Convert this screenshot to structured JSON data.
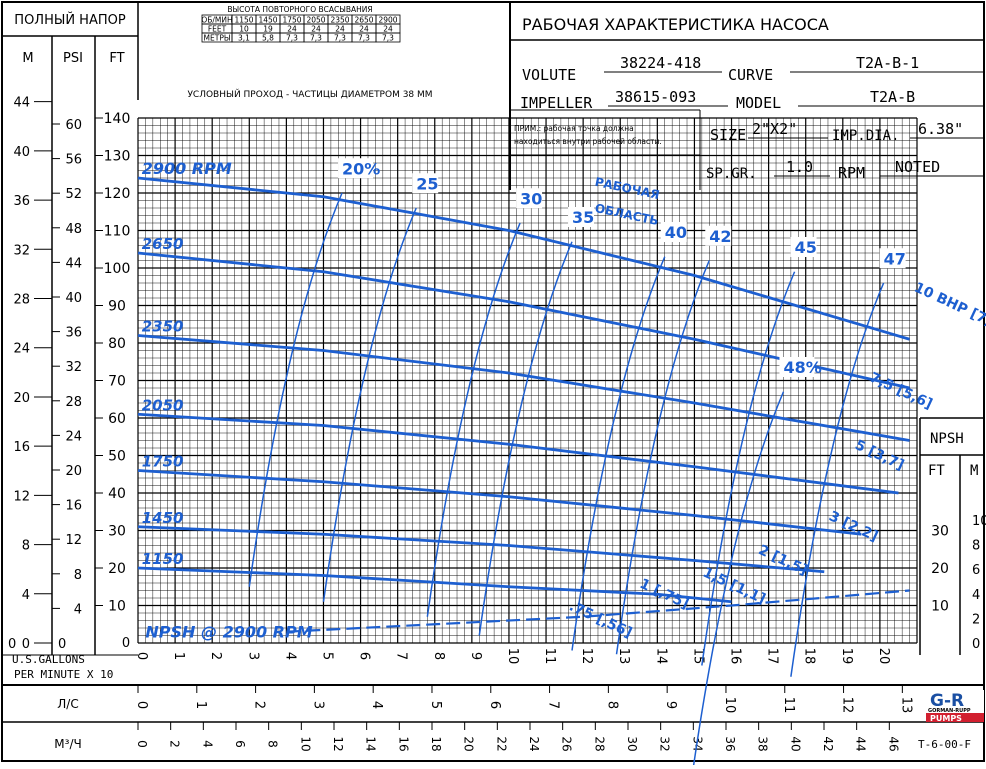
{
  "header": {
    "head_label": "ПОЛНЫЙ НАПОР",
    "title": "РАБОЧАЯ ХАРАКТЕРИСТИКА НАСОСА",
    "suction_table_title": "ВЫСОТА ПОВТОРНОГО ВСАСЫВАНИЯ",
    "suction_table": {
      "rows": [
        [
          "ОБ/МИН",
          "1150",
          "1450",
          "1750",
          "2050",
          "2350",
          "2650",
          "2900"
        ],
        [
          "FEET",
          "10",
          "19",
          "24",
          "24",
          "24",
          "24",
          "24"
        ],
        [
          "МЕТРЫ",
          "3,1",
          "5,8",
          "7,3",
          "7,3",
          "7,3",
          "7,3",
          "7,3"
        ]
      ]
    },
    "solids_note": "УСЛОВНЫЙ ПРОХОД - ЧАСТИЦЫ ДИАМЕТРОМ 38  ММ",
    "operating_note_line1": "ПРИМ.: рабочая точка должна",
    "operating_note_line2": "находиться внутри рабочей области."
  },
  "specs": {
    "volute_label": "VOLUTE",
    "volute": "38224-418",
    "curve_label": "CURVE",
    "curve": "T2A-B-1",
    "impeller_label": "IMPELLER",
    "impeller": "38615-093",
    "model_label": "MODEL",
    "model": "T2A-B",
    "size_label": "SIZE",
    "size": "2\"X2\"",
    "impdia_label": "IMP.DIA.",
    "impdia": "6.38\"",
    "spgr_label": "SP.GR.",
    "spgr": "1.0",
    "rpm_label": "RPM",
    "rpm": "NOTED"
  },
  "axes_text": {
    "m": "M",
    "psi": "PSI",
    "ft": "FT",
    "xunit_line1": "U.S.GALLONS",
    "xunit_line2": "PER MINUTE  X 10",
    "ls": "Л/С",
    "m3h": "М³/Ч",
    "npsh": "NPSH",
    "npsh_ft": "FT",
    "npsh_m": "M"
  },
  "footer": {
    "logo_top": "G-R",
    "logo_mid": "GORMAN-RUPP",
    "logo_bottom": "PUMPS",
    "code": "T-6-00-F"
  },
  "chart_data": {
    "type": "line",
    "title": "РАБОЧАЯ ХАРАКТЕРИСТИКА НАСОСА",
    "xlabel": "U.S.GALLONS PER MINUTE X 10",
    "ylabel": "ПОЛНЫЙ НАПОР",
    "x_gpm10_range": [
      0,
      21
    ],
    "y_ft_range": [
      0,
      140
    ],
    "x_ticks_gpm10": [
      "0",
      "1",
      "2",
      "3",
      "4",
      "5",
      "6",
      "7",
      "8",
      "9",
      "10",
      "11",
      "12",
      "13",
      "14",
      "15",
      "16",
      "17",
      "18",
      "19",
      "20"
    ],
    "y_ticks_ft": [
      "10",
      "20",
      "30",
      "40",
      "50",
      "60",
      "70",
      "80",
      "90",
      "100",
      "110",
      "120",
      "130",
      "140"
    ],
    "y_ticks_m": [
      "0",
      "4",
      "8",
      "12",
      "16",
      "20",
      "24",
      "28",
      "32",
      "36",
      "40",
      "44"
    ],
    "y_ticks_psi": [
      "4",
      "8",
      "12",
      "16",
      "20",
      "24",
      "28",
      "32",
      "36",
      "40",
      "44",
      "48",
      "52",
      "56",
      "60"
    ],
    "x_ticks_ls": [
      "0",
      "1",
      "2",
      "3",
      "4",
      "5",
      "6",
      "7",
      "8",
      "9",
      "10",
      "11",
      "12",
      "13"
    ],
    "x_ticks_m3h": [
      "0",
      "2",
      "4",
      "6",
      "8",
      "10",
      "12",
      "14",
      "16",
      "18",
      "20",
      "22",
      "24",
      "26",
      "28",
      "30",
      "32",
      "34",
      "36",
      "38",
      "40",
      "42",
      "44",
      "46"
    ],
    "npsh_ticks_ft": [
      "10",
      "20",
      "30"
    ],
    "npsh_ticks_m": [
      "0",
      "2",
      "4",
      "6",
      "8",
      "10"
    ],
    "head_curves": [
      {
        "name": "2900 RPM",
        "x": [
          0,
          5,
          10,
          15,
          20.8
        ],
        "y": [
          124,
          119,
          110,
          98,
          81
        ]
      },
      {
        "name": "2650",
        "x": [
          0,
          5,
          10,
          15,
          20.8
        ],
        "y": [
          104,
          99,
          91,
          81,
          68
        ]
      },
      {
        "name": "2350",
        "x": [
          0,
          5,
          10,
          15,
          20.8
        ],
        "y": [
          82,
          78,
          72,
          64,
          54
        ]
      },
      {
        "name": "2050",
        "x": [
          0,
          5,
          10,
          15,
          20.5
        ],
        "y": [
          61,
          58,
          53,
          47,
          40
        ]
      },
      {
        "name": "1750",
        "x": [
          0,
          5,
          10,
          15,
          19.5
        ],
        "y": [
          46,
          43,
          39,
          34,
          29
        ]
      },
      {
        "name": "1450",
        "x": [
          0,
          5,
          10,
          15,
          18.5
        ],
        "y": [
          31,
          29,
          26,
          22,
          19
        ]
      },
      {
        "name": "1150",
        "x": [
          0,
          5,
          10,
          14,
          16
        ],
        "y": [
          20,
          18,
          15,
          13,
          11
        ]
      }
    ],
    "efficiency_labels": [
      "20%",
      "25",
      "30",
      "35",
      "40",
      "42",
      "45",
      "47",
      "48%"
    ],
    "power_labels": [
      "10 BHP [7,5 KW]",
      "7,5 [5,6]",
      "5 [3,7]",
      "3 [2,2]",
      "2 [1,5]",
      "1,5 [1,1]",
      "1 [,75]",
      ".75 [,56]"
    ],
    "operating_region_label": [
      "РАБОЧАЯ",
      "ОБЛАСТЬ"
    ],
    "npsh_curve": {
      "name": "NPSH @ 2900 RPM",
      "x": [
        4,
        8,
        12,
        16,
        20.8
      ],
      "y_ft": [
        3,
        5,
        7,
        10,
        14
      ]
    }
  }
}
